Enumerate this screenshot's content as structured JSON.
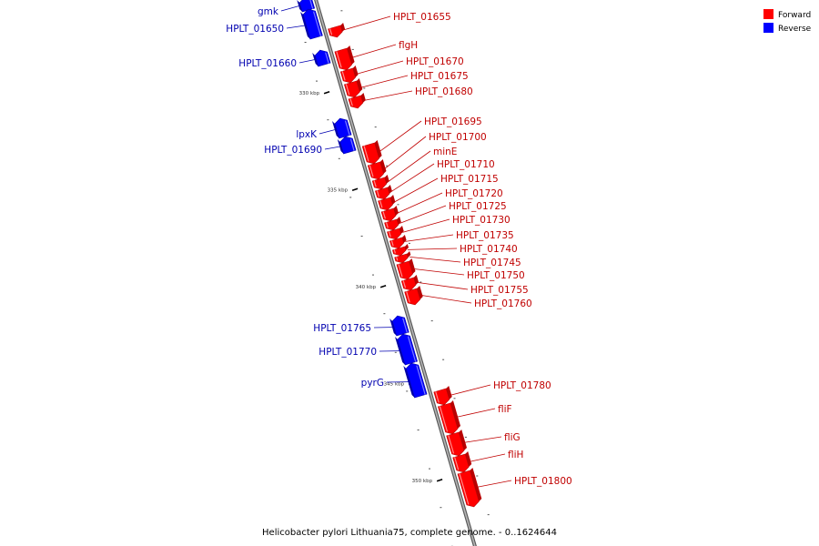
{
  "caption": "Helicobacter pylori Lithuania75, complete genome. - 0..1624644",
  "legend": [
    {
      "label": "Forward",
      "color": "#ff0000"
    },
    {
      "label": "Reverse",
      "color": "#0000ff"
    }
  ],
  "colors": {
    "forward": "#ff0000",
    "forward_dark": "#b80000",
    "reverse": "#0000ff",
    "reverse_dark": "#0000a8",
    "forward_label": "#c00000",
    "reverse_label": "#0000b0",
    "backbone": "#888888"
  },
  "scale": {
    "unit": "kbp",
    "ticks": [
      {
        "label": "330 kbp",
        "pos": 330
      },
      {
        "label": "335 kbp",
        "pos": 335
      },
      {
        "label": "340 kbp",
        "pos": 340
      },
      {
        "label": "345 kbp",
        "pos": 345
      },
      {
        "label": "350 kbp",
        "pos": 350
      }
    ]
  },
  "genes": [
    {
      "name": "gmk",
      "strand": "reverse"
    },
    {
      "name": "HPLT_01650",
      "strand": "reverse"
    },
    {
      "name": "HPLT_01655",
      "strand": "forward"
    },
    {
      "name": "HPLT_01660",
      "strand": "reverse"
    },
    {
      "name": "flgH",
      "strand": "forward"
    },
    {
      "name": "HPLT_01670",
      "strand": "forward"
    },
    {
      "name": "HPLT_01675",
      "strand": "forward"
    },
    {
      "name": "HPLT_01680",
      "strand": "forward"
    },
    {
      "name": "lpxK",
      "strand": "reverse"
    },
    {
      "name": "HPLT_01690",
      "strand": "reverse"
    },
    {
      "name": "HPLT_01695",
      "strand": "forward"
    },
    {
      "name": "HPLT_01700",
      "strand": "forward"
    },
    {
      "name": "minE",
      "strand": "forward"
    },
    {
      "name": "HPLT_01710",
      "strand": "forward"
    },
    {
      "name": "HPLT_01715",
      "strand": "forward"
    },
    {
      "name": "HPLT_01720",
      "strand": "forward"
    },
    {
      "name": "HPLT_01725",
      "strand": "forward"
    },
    {
      "name": "HPLT_01730",
      "strand": "forward"
    },
    {
      "name": "HPLT_01735",
      "strand": "forward"
    },
    {
      "name": "HPLT_01740",
      "strand": "forward"
    },
    {
      "name": "HPLT_01745",
      "strand": "forward"
    },
    {
      "name": "HPLT_01750",
      "strand": "forward"
    },
    {
      "name": "HPLT_01755",
      "strand": "forward"
    },
    {
      "name": "HPLT_01760",
      "strand": "forward"
    },
    {
      "name": "HPLT_01765",
      "strand": "reverse"
    },
    {
      "name": "HPLT_01770",
      "strand": "reverse"
    },
    {
      "name": "pyrG",
      "strand": "reverse"
    },
    {
      "name": "HPLT_01780",
      "strand": "forward"
    },
    {
      "name": "fliF",
      "strand": "forward"
    },
    {
      "name": "fliG",
      "strand": "forward"
    },
    {
      "name": "fliH",
      "strand": "forward"
    },
    {
      "name": "HPLT_01800",
      "strand": "forward"
    }
  ]
}
